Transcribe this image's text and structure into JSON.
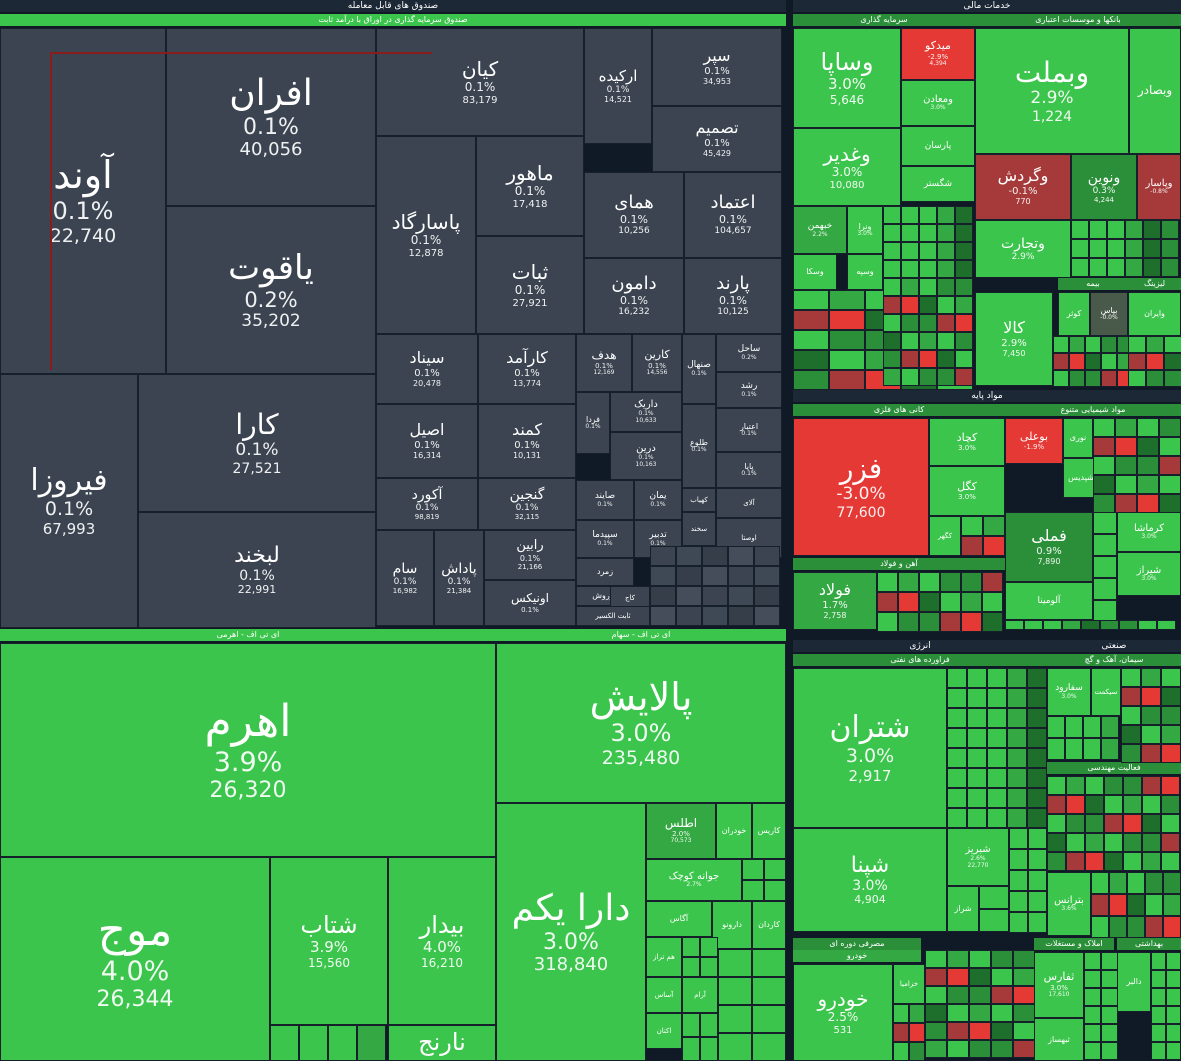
{
  "colors": {
    "neutral": "#3b4450",
    "green": "#3cc54c",
    "green_dark": "#2b8f3a",
    "green_mid": "#33a843",
    "red": "#e53935",
    "red_dark": "#a63a3a",
    "background": "#0f1a26"
  },
  "chart_data": {
    "type": "treemap",
    "sections": [
      {
        "key": "funds",
        "title": "صندوق های قابل معامله"
      },
      {
        "key": "financial",
        "title": "خدمات مالی"
      },
      {
        "key": "basic",
        "title": "مواد پایه"
      },
      {
        "key": "energy",
        "title": "انرژی"
      },
      {
        "key": "industrial",
        "title": "صنعتی"
      }
    ],
    "groups": [
      {
        "key": "fixed",
        "title": "صندوق سرمایه گذاری در اوراق با درآمد ثابت"
      },
      {
        "key": "etf_leverage",
        "title": "ای تی اف - اهرمی"
      },
      {
        "key": "etf_stock",
        "title": "ای تی اف - سهام"
      },
      {
        "key": "investment",
        "title": "سرمایه گذاری"
      },
      {
        "key": "banks",
        "title": "بانکها و موسسات اعتباری"
      },
      {
        "key": "metals",
        "title": "کانی های فلزی"
      },
      {
        "key": "chemical",
        "title": "مواد شیمیایی متنوع"
      },
      {
        "key": "iron",
        "title": "آهن و فولاد"
      },
      {
        "key": "refinery",
        "title": "فراورده های نفتی"
      },
      {
        "key": "consumer",
        "title": "مصرفی دوره ای"
      },
      {
        "key": "auto",
        "title": "خودرو"
      },
      {
        "key": "realestate",
        "title": "املاک و مستغلات"
      },
      {
        "key": "health",
        "title": "بهداشتی"
      },
      {
        "key": "cement",
        "title": "سیمان، آهک و گچ"
      },
      {
        "key": "engineering",
        "title": "فعالیت مهندسی"
      },
      {
        "key": "leasing",
        "title": "لیزینگ"
      },
      {
        "key": "insurance",
        "title": "بیمه"
      }
    ],
    "tiles": [
      {
        "name": "آوند",
        "change": "0.1%",
        "value": "22,740"
      },
      {
        "name": "افران",
        "change": "0.1%",
        "value": "40,056"
      },
      {
        "name": "یاقوت",
        "change": "0.2%",
        "value": "35,202"
      },
      {
        "name": "کیان",
        "change": "0.1%",
        "value": "83,179"
      },
      {
        "name": "ارکیده",
        "change": "0.1%",
        "value": "14,521"
      },
      {
        "name": "سپر",
        "change": "0.1%",
        "value": "34,953"
      },
      {
        "name": "تصمیم",
        "change": "0.1%",
        "value": "45,429"
      },
      {
        "name": "پاسارگاد",
        "change": "0.1%",
        "value": "12,878"
      },
      {
        "name": "ماهور",
        "change": "0.1%",
        "value": "17,418"
      },
      {
        "name": "ثبات",
        "change": "0.1%",
        "value": "27,921"
      },
      {
        "name": "همای",
        "change": "0.1%",
        "value": "10,256"
      },
      {
        "name": "اعتماد",
        "change": "0.1%",
        "value": "104,657"
      },
      {
        "name": "دامون",
        "change": "0.1%",
        "value": "16,232"
      },
      {
        "name": "پارند",
        "change": "0.1%",
        "value": "10,125"
      },
      {
        "name": "فیروزا",
        "change": "0.1%",
        "value": "67,993"
      },
      {
        "name": "کارا",
        "change": "0.1%",
        "value": "27,521"
      },
      {
        "name": "لبخند",
        "change": "0.1%",
        "value": "22,991"
      },
      {
        "name": "سیناد",
        "change": "0.1%",
        "value": "20,478"
      },
      {
        "name": "کارآمد",
        "change": "0.1%",
        "value": "13,774"
      },
      {
        "name": "هدف",
        "change": "0.1%",
        "value": "12,169"
      },
      {
        "name": "کارین",
        "change": "0.1%",
        "value": "14,556"
      },
      {
        "name": "صنهال",
        "change": "0.1%",
        "value": ""
      },
      {
        "name": "ساحل",
        "change": "0.2%",
        "value": ""
      },
      {
        "name": "رشد",
        "change": "0.1%",
        "value": ""
      },
      {
        "name": "اصیل",
        "change": "0.1%",
        "value": "16,314"
      },
      {
        "name": "کمند",
        "change": "0.1%",
        "value": "10,131"
      },
      {
        "name": "فردا",
        "change": "0.1%",
        "value": ""
      },
      {
        "name": "داریک",
        "change": "0.1%",
        "value": "10,633"
      },
      {
        "name": "طلوع",
        "change": "0.1%",
        "value": ""
      },
      {
        "name": "اعتبار",
        "change": "0.1%",
        "value": ""
      },
      {
        "name": "درین",
        "change": "0.1%",
        "value": "10,163"
      },
      {
        "name": "پایا",
        "change": "0.1%",
        "value": ""
      },
      {
        "name": "آکورد",
        "change": "0.1%",
        "value": "98,819"
      },
      {
        "name": "گنجین",
        "change": "0.1%",
        "value": "32,115"
      },
      {
        "name": "صایند",
        "change": "0.1%",
        "value": ""
      },
      {
        "name": "یمان",
        "change": "0.1%",
        "value": ""
      },
      {
        "name": "کهیاب",
        "change": "",
        "value": ""
      },
      {
        "name": "آلای",
        "change": "",
        "value": ""
      },
      {
        "name": "سام",
        "change": "0.1%",
        "value": "16,982"
      },
      {
        "name": "پاداش",
        "change": "0.1%",
        "value": "21,384"
      },
      {
        "name": "رابین",
        "change": "0.1%",
        "value": "21,166"
      },
      {
        "name": "سپیدما",
        "change": "0.1%",
        "value": ""
      },
      {
        "name": "تدبیر",
        "change": "0.1%",
        "value": ""
      },
      {
        "name": "اوصتا",
        "change": "",
        "value": ""
      },
      {
        "name": "سخند",
        "change": "",
        "value": ""
      },
      {
        "name": "اونیکس",
        "change": "0.1%",
        "value": ""
      },
      {
        "name": "زمرد",
        "change": "",
        "value": ""
      },
      {
        "name": "کوروش",
        "change": "",
        "value": ""
      },
      {
        "name": "کاج",
        "change": "",
        "value": ""
      },
      {
        "name": "ثابت الکسیر",
        "change": "",
        "value": ""
      },
      {
        "name": "اهرم",
        "change": "3.9%",
        "value": "26,320"
      },
      {
        "name": "موج",
        "change": "4.0%",
        "value": "26,344"
      },
      {
        "name": "شتاب",
        "change": "3.9%",
        "value": "15,560"
      },
      {
        "name": "بیدار",
        "change": "4.0%",
        "value": "16,210"
      },
      {
        "name": "نارنج",
        "change": "",
        "value": ""
      },
      {
        "name": "پالایش",
        "change": "3.0%",
        "value": "235,480"
      },
      {
        "name": "دارا یکم",
        "change": "3.0%",
        "value": "318,840"
      },
      {
        "name": "اطلس",
        "change": "2.0%",
        "value": "70,573"
      },
      {
        "name": "خودران",
        "change": "",
        "value": ""
      },
      {
        "name": "کاریس",
        "change": "",
        "value": ""
      },
      {
        "name": "جوانه کوچک",
        "change": "2.7%",
        "value": ""
      },
      {
        "name": "آگاس",
        "change": "",
        "value": ""
      },
      {
        "name": "دارونو",
        "change": "",
        "value": ""
      },
      {
        "name": "کاردان",
        "change": "",
        "value": ""
      },
      {
        "name": "هم تراز",
        "change": "",
        "value": ""
      },
      {
        "name": "آساس",
        "change": "",
        "value": ""
      },
      {
        "name": "آرام",
        "change": "",
        "value": ""
      },
      {
        "name": "اکتان",
        "change": "",
        "value": ""
      },
      {
        "name": "وساپا",
        "change": "3.0%",
        "value": "5,646"
      },
      {
        "name": "میدکو",
        "change": "-2.9%",
        "value": "4,394"
      },
      {
        "name": "ومعادن",
        "change": "3.0%",
        "value": ""
      },
      {
        "name": "پارسان",
        "change": "",
        "value": ""
      },
      {
        "name": "وغدیر",
        "change": "3.0%",
        "value": "10,080"
      },
      {
        "name": "شگستر",
        "change": "",
        "value": ""
      },
      {
        "name": "وبملت",
        "change": "2.9%",
        "value": "1,224"
      },
      {
        "name": "وبصادر",
        "change": "",
        "value": ""
      },
      {
        "name": "وگردش",
        "change": "-0.1%",
        "value": "770"
      },
      {
        "name": "ونوین",
        "change": "0.3%",
        "value": "4,244"
      },
      {
        "name": "وپاسار",
        "change": "-0.8%",
        "value": ""
      },
      {
        "name": "خبهمن",
        "change": "2.2%",
        "value": ""
      },
      {
        "name": "ونرا",
        "change": "3.0%",
        "value": ""
      },
      {
        "name": "وتجارت",
        "change": "2.9%",
        "value": ""
      },
      {
        "name": "وسکا",
        "change": "",
        "value": ""
      },
      {
        "name": "وسپه",
        "change": "",
        "value": ""
      },
      {
        "name": "کالا",
        "change": "2.9%",
        "value": "7,450"
      },
      {
        "name": "کوثر",
        "change": "",
        "value": ""
      },
      {
        "name": "بپاس",
        "change": "-0.0%",
        "value": ""
      },
      {
        "name": "وایران",
        "change": "",
        "value": ""
      },
      {
        "name": "فزر",
        "change": "-3.0%",
        "value": "77,600"
      },
      {
        "name": "کچاد",
        "change": "3.0%",
        "value": ""
      },
      {
        "name": "کگل",
        "change": "3.0%",
        "value": ""
      },
      {
        "name": "کگهر",
        "change": "",
        "value": ""
      },
      {
        "name": "بوعلی",
        "change": "-1.9%",
        "value": ""
      },
      {
        "name": "نوری",
        "change": "",
        "value": ""
      },
      {
        "name": "شپدیس",
        "change": "",
        "value": ""
      },
      {
        "name": "فملی",
        "change": "0.9%",
        "value": "7,890"
      },
      {
        "name": "کرماشا",
        "change": "3.0%",
        "value": ""
      },
      {
        "name": "شیراز",
        "change": "3.0%",
        "value": ""
      },
      {
        "name": "فولاد",
        "change": "1.7%",
        "value": "2,758"
      },
      {
        "name": "آلومینا",
        "change": "",
        "value": ""
      },
      {
        "name": "شتران",
        "change": "3.0%",
        "value": "2,917"
      },
      {
        "name": "شپنا",
        "change": "3.0%",
        "value": "4,904"
      },
      {
        "name": "شبریز",
        "change": "2.6%",
        "value": "22,770"
      },
      {
        "name": "شراز",
        "change": "",
        "value": ""
      },
      {
        "name": "خودرو",
        "change": "2.5%",
        "value": "531"
      },
      {
        "name": "خزامیا",
        "change": "",
        "value": ""
      },
      {
        "name": "ثفارس",
        "change": "3.0%",
        "value": "17,610"
      },
      {
        "name": "ثبهساز",
        "change": "",
        "value": ""
      },
      {
        "name": "دالبر",
        "change": "",
        "value": ""
      },
      {
        "name": "سفارود",
        "change": "3.0%",
        "value": ""
      },
      {
        "name": "سیکمت",
        "change": "",
        "value": ""
      },
      {
        "name": "بترانس",
        "change": "3.6%",
        "value": ""
      }
    ]
  }
}
